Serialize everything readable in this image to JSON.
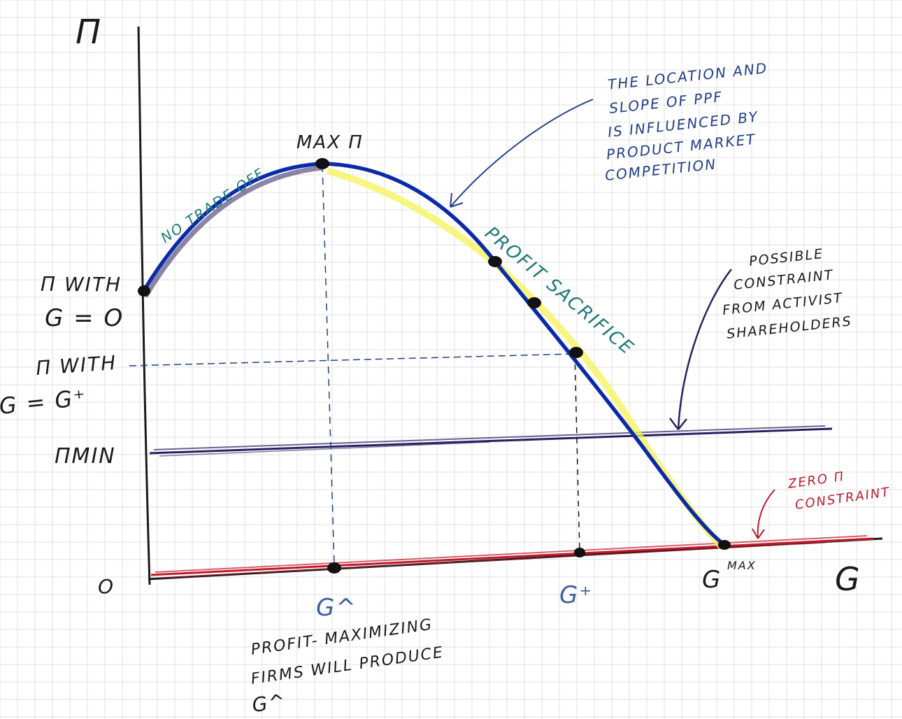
{
  "colors": {
    "ink": "#1a1a1a",
    "frontier": "#0b2aa8",
    "highlight": "#f6f35a",
    "teal": "#1f7a78",
    "annotation_blue": "#1f3f86",
    "activist": "#2b2060",
    "zero_constraint": "#c0192b",
    "grid": "#d9d9d9",
    "g_labels": "#3d5f9a"
  },
  "axes": {
    "y_label": "Π",
    "x_label": "G",
    "origin_label": "O"
  },
  "y_labels": {
    "pi_g0_line1": "Π WITH",
    "pi_g0_line2": "G = O",
    "pi_gplus_line1": "Π WITH",
    "pi_gplus_line2": "G = G⁺",
    "pi_min": "ΠMIN"
  },
  "x_labels": {
    "g_hat": "G^",
    "g_plus": "G⁺",
    "g_max_base": "G",
    "g_max_sup": "MAX"
  },
  "curve_labels": {
    "max_pi": "MAX Π",
    "no_trade_off": "NO TRADE OFF",
    "profit_sacrifice": "PROFIT SACRIFICE"
  },
  "annotations": {
    "ppf_note": [
      "THE LOCATION AND",
      "SLOPE OF PPF",
      "IS INFLUENCED BY",
      "PRODUCT MARKET",
      "COMPETITION"
    ],
    "activist_note": [
      "POSSIBLE",
      "CONSTRAINT",
      "FROM ACTIVIST",
      "SHAREHOLDERS"
    ],
    "zero_note": [
      "ZERO Π",
      "CONSTRAINT"
    ],
    "bottom_note": [
      "PROFIT- MAXIMIZING",
      "FIRMS WILL PRODUCE",
      "G^"
    ]
  }
}
